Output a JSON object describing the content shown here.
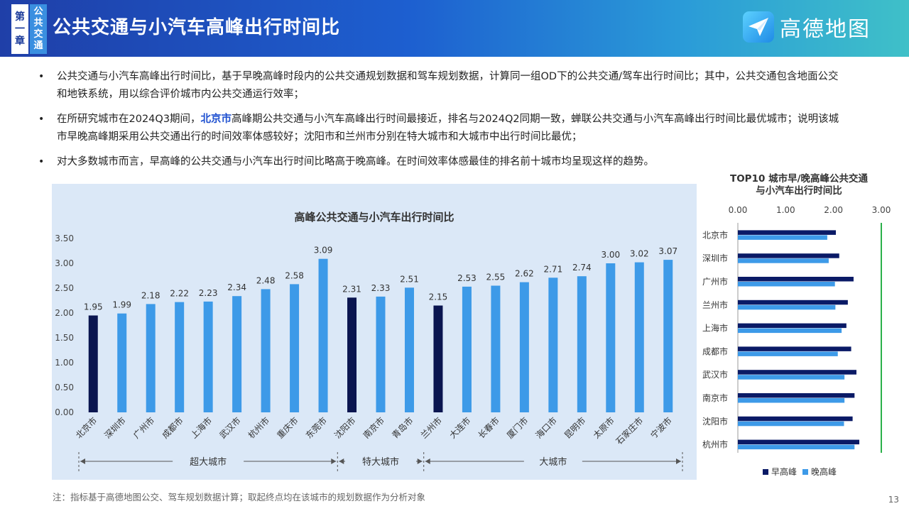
{
  "header": {
    "chapter_chars": [
      "第",
      "一",
      "章"
    ],
    "topic_chars": [
      "公",
      "共",
      "交",
      "通"
    ],
    "title": "公共交通与小汽车高峰出行时间比",
    "logo_text": "高德地图"
  },
  "bullets": [
    {
      "text": "公共交通与小汽车高峰出行时间比，基于早晚高峰时段内的公共交通规划数据和驾车规划数据，计算同一组OD下的公共交通/驾车出行时间比；其中，公共交通包含地面公交和地铁系统，用以综合评价城市内公共交通运行效率；"
    },
    {
      "pre": "在所研究城市在2024Q3期间，",
      "highlight": "北京市",
      "post": "高峰期公共交通与小汽车高峰出行时间最接近，排名与2024Q2同期一致，蝉联公共交通与小汽车高峰出行时间比最优城市；说明该城市早晚高峰期采用公共交通出行的时间效率体感较好；沈阳市和兰州市分别在特大城市和大城市中出行时间比最优；"
    },
    {
      "text": "对大多数城市而言，早高峰的公共交通与小汽车出行时间比略高于晚高峰。在时间效率体感最佳的排名前十城市均呈现这样的趋势。"
    }
  ],
  "bullet_symbol": "•",
  "chart_data": [
    {
      "type": "bar",
      "title": "高峰公共交通与小汽车出行时间比",
      "categories": [
        "北京市",
        "深圳市",
        "广州市",
        "成都市",
        "上海市",
        "武汉市",
        "杭州市",
        "重庆市",
        "东莞市",
        "沈阳市",
        "南京市",
        "青岛市",
        "兰州市",
        "大连市",
        "长春市",
        "厦门市",
        "海口市",
        "昆明市",
        "太原市",
        "石家庄市",
        "宁波市"
      ],
      "values": [
        1.95,
        1.99,
        2.18,
        2.22,
        2.23,
        2.34,
        2.48,
        2.58,
        3.09,
        2.31,
        2.33,
        2.51,
        2.15,
        2.53,
        2.55,
        2.62,
        2.71,
        2.74,
        3.0,
        3.02,
        3.07
      ],
      "value_labels": [
        "1.95",
        "1.99",
        "2.18",
        "2.22",
        "2.23",
        "2.34",
        "2.48",
        "2.58",
        "3.09",
        "2.31",
        "2.33",
        "2.51",
        "2.15",
        "2.53",
        "2.55",
        "2.62",
        "2.71",
        "2.74",
        "3.00",
        "3.02",
        "3.07"
      ],
      "highlight_indices": [
        0,
        9,
        12
      ],
      "yticks": [
        "0.00",
        "0.50",
        "1.00",
        "1.50",
        "2.00",
        "2.50",
        "3.00",
        "3.50"
      ],
      "ylim": [
        0,
        3.5
      ],
      "groups": [
        {
          "label": "超大城市",
          "start": 0,
          "end": 8
        },
        {
          "label": "特大城市",
          "start": 9,
          "end": 11
        },
        {
          "label": "大城市",
          "start": 12,
          "end": 20
        }
      ],
      "colors": {
        "bar": "#3d9ae8",
        "highlight": "#0a1550",
        "axis": "#555555"
      }
    },
    {
      "type": "bar",
      "title_lines": [
        "TOP10 城市早/晚高峰公共交通",
        "与小汽车出行时间比"
      ],
      "categories": [
        "北京市",
        "深圳市",
        "广州市",
        "兰州市",
        "上海市",
        "成都市",
        "武汉市",
        "南京市",
        "沈阳市",
        "杭州市"
      ],
      "series": [
        {
          "name": "早高峰",
          "values": [
            2.05,
            2.12,
            2.42,
            2.3,
            2.27,
            2.37,
            2.48,
            2.44,
            2.4,
            2.54
          ],
          "color": "#0a1a66"
        },
        {
          "name": "晚高峰",
          "values": [
            1.87,
            1.9,
            2.03,
            2.04,
            2.17,
            2.09,
            2.23,
            2.23,
            2.22,
            2.44
          ],
          "color": "#3d9ae8"
        }
      ],
      "xticks": [
        "0.00",
        "1.00",
        "2.00",
        "3.00"
      ],
      "xlim": [
        0,
        3
      ],
      "orientation": "horizontal",
      "accent": "#2bb04a"
    }
  ],
  "note": "注：指标基于高德地图公交、驾车规划数据计算；取起终点均在该城市的规划数据作为分析对象",
  "page_number": "13"
}
